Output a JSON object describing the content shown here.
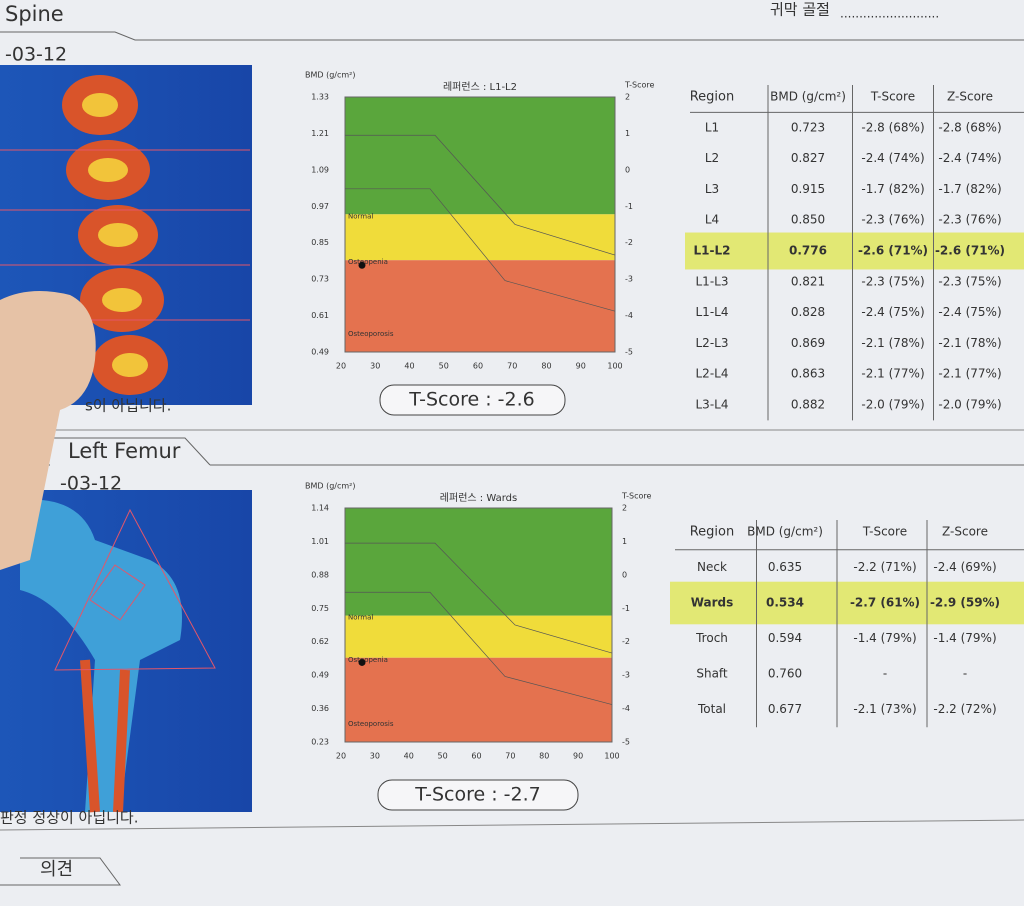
{
  "header": {
    "top_note": "귀막 골절"
  },
  "sections": [
    {
      "tab": "Spine",
      "date": "-03-12",
      "note": "s이 아닙니다.",
      "chart": {
        "y_label": "BMD (g/cm²)",
        "title": "레퍼런스 : L1-L2",
        "y2_label": "T-Score",
        "ylim": [
          0.49,
          1.33
        ],
        "yticks": [
          1.33,
          1.21,
          1.09,
          0.97,
          0.85,
          0.73,
          0.61,
          0.49
        ],
        "y2lim": [
          2,
          -5
        ],
        "y2ticks": [
          2,
          1,
          0,
          -1,
          -2,
          -3,
          -4,
          -5
        ],
        "xlim": [
          20,
          100
        ],
        "xticks": [
          20,
          30,
          40,
          50,
          60,
          70,
          80,
          90,
          100
        ],
        "zones": [
          "Normal",
          "Osteopenia",
          "Osteoporosis"
        ]
      },
      "tscore": "T-Score : -2.6",
      "table": {
        "header": [
          "Region",
          "BMD (g/cm²)",
          "T-Score",
          "Z-Score"
        ],
        "highlight_row": 4,
        "rows": [
          [
            "L1",
            "0.723",
            "-2.8 (68%)",
            "-2.8 (68%)"
          ],
          [
            "L2",
            "0.827",
            "-2.4 (74%)",
            "-2.4 (74%)"
          ],
          [
            "L3",
            "0.915",
            "-1.7 (82%)",
            "-1.7 (82%)"
          ],
          [
            "L4",
            "0.850",
            "-2.3 (76%)",
            "-2.3 (76%)"
          ],
          [
            "L1-L2",
            "0.776",
            "-2.6 (71%)",
            "-2.6 (71%)"
          ],
          [
            "L1-L3",
            "0.821",
            "-2.3 (75%)",
            "-2.3 (75%)"
          ],
          [
            "L1-L4",
            "0.828",
            "-2.4 (75%)",
            "-2.4 (75%)"
          ],
          [
            "L2-L3",
            "0.869",
            "-2.1 (78%)",
            "-2.1 (78%)"
          ],
          [
            "L2-L4",
            "0.863",
            "-2.1 (77%)",
            "-2.1 (77%)"
          ],
          [
            "L3-L4",
            "0.882",
            "-2.0 (79%)",
            "-2.0 (79%)"
          ]
        ]
      }
    },
    {
      "tab": "Left Femur",
      "date": "-03-12",
      "note": "판정 정상이 아닙니다.",
      "chart": {
        "y_label": "BMD (g/cm²)",
        "title": "레퍼런스 : Wards",
        "y2_label": "T-Score",
        "ylim": [
          0.23,
          1.14
        ],
        "yticks": [
          1.14,
          1.01,
          0.88,
          0.75,
          0.62,
          0.49,
          0.36,
          0.23
        ],
        "y2lim": [
          2,
          -5
        ],
        "y2ticks": [
          2,
          1,
          0,
          -1,
          -2,
          -3,
          -4,
          -5
        ],
        "xlim": [
          20,
          100
        ],
        "xticks": [
          20,
          30,
          40,
          50,
          60,
          70,
          80,
          90,
          100
        ],
        "zones": [
          "Normal",
          "Osteopenia",
          "Osteoporosis"
        ]
      },
      "tscore": "T-Score : -2.7",
      "table": {
        "header": [
          "Region",
          "BMD (g/cm²)",
          "T-Score",
          "Z-Score"
        ],
        "highlight_row": 1,
        "rows": [
          [
            "Neck",
            "0.635",
            "-2.2 (71%)",
            "-2.4 (69%)"
          ],
          [
            "Wards",
            "0.534",
            "-2.7 (61%)",
            "-2.9 (59%)"
          ],
          [
            "Troch",
            "0.594",
            "-1.4 (79%)",
            "-1.4 (79%)"
          ],
          [
            "Shaft",
            "0.760",
            "-",
            "-"
          ],
          [
            "Total",
            "0.677",
            "-2.1 (73%)",
            "-2.2 (72%)"
          ]
        ]
      }
    }
  ],
  "footer": {
    "tab": "의견"
  }
}
